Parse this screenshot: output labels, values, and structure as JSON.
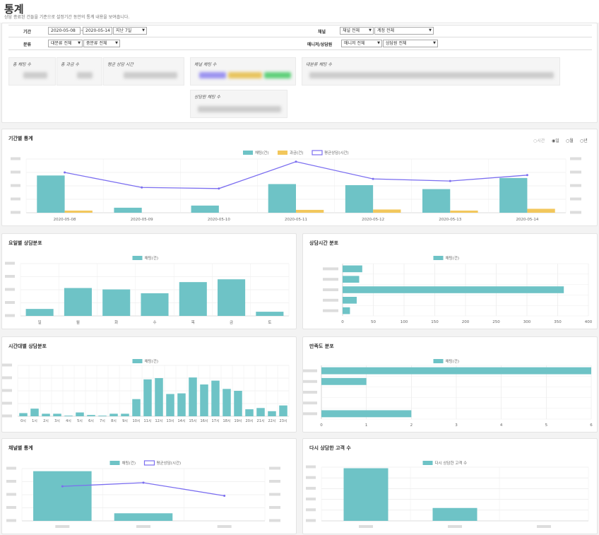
{
  "page": {
    "title": "통계",
    "subtitle": "상담 종료된 건들을 기준으로 설정기간 동안의 통계 내용을 보여줍니다."
  },
  "filters": {
    "period_label": "기간",
    "date_from": "2020-05-08",
    "date_sep": "~",
    "date_to": "2020-05-14",
    "range_select": "지난 7일",
    "channel_label": "채널",
    "channel_select": "채널 전체",
    "account_select": "계정 전체",
    "category_label": "분류",
    "major_select": "대분류 전체",
    "minor_select": "중분류 전체",
    "manager_label": "매니저/상담원",
    "manager_select": "매니저 전체",
    "agent_select": "상담원 전체"
  },
  "summary": {
    "total_chats_label": "총 채팅 수",
    "total_charge_label": "총 과금 수",
    "avg_time_label": "평균 상담 시간",
    "channel_chats_label": "채널 채팅 수",
    "major_chats_label": "대분류 채팅 수",
    "agent_chats_label": "상담원 채팅 수"
  },
  "period_chart": {
    "title": "기간별 통계",
    "radios": [
      "시간",
      "일",
      "월",
      "년"
    ],
    "selected": "일",
    "legend": [
      "채팅(건)",
      "과금(건)",
      "평균상담(시간)"
    ],
    "chart_data": {
      "type": "bar",
      "categories": [
        "2020-05-08",
        "2020-05-09",
        "2020-05-10",
        "2020-05-11",
        "2020-05-12",
        "2020-05-13",
        "2020-05-14"
      ],
      "series": [
        {
          "name": "채팅(건)",
          "values": [
            104,
            14,
            20,
            80,
            77,
            66,
            97
          ]
        },
        {
          "name": "과금(건)",
          "values": [
            6,
            0,
            0,
            8,
            9,
            6,
            11
          ]
        },
        {
          "name": "평균상담(시간)",
          "values": [
            75,
            47,
            45,
            95,
            63,
            59,
            70
          ]
        }
      ],
      "ylim": [
        0,
        150
      ]
    }
  },
  "dow_chart": {
    "title": "요일별 상담분포",
    "legend": [
      "채팅(건)"
    ],
    "chart_data": {
      "type": "bar",
      "categories": [
        "일",
        "월",
        "화",
        "수",
        "목",
        "금",
        "토"
      ],
      "values": [
        20,
        80,
        76,
        65,
        97,
        105,
        12
      ],
      "ylim": [
        0,
        150
      ]
    }
  },
  "duration_chart": {
    "title": "상담시간 분포",
    "legend": [
      "채팅(건)"
    ],
    "chart_data": {
      "type": "bar",
      "categories": [
        "",
        "",
        "",
        "",
        ""
      ],
      "values": [
        32,
        27,
        360,
        23,
        12
      ],
      "ticks": [
        "0",
        "50",
        "100",
        "150",
        "200",
        "250",
        "300",
        "350",
        "400"
      ],
      "xlim": [
        0,
        400
      ]
    }
  },
  "hour_chart": {
    "title": "시간대별 상담분포",
    "legend": [
      "채팅(건)"
    ],
    "chart_data": {
      "type": "bar",
      "categories": [
        "0시",
        "1시",
        "2시",
        "3시",
        "4시",
        "5시",
        "6시",
        "7시",
        "8시",
        "9시",
        "10시",
        "11시",
        "12시",
        "13시",
        "14시",
        "15시",
        "16시",
        "17시",
        "18시",
        "19시",
        "20시",
        "21시",
        "22시",
        "23시"
      ],
      "values": [
        5,
        12,
        4,
        4,
        1,
        6,
        2,
        1,
        4,
        4,
        27,
        58,
        60,
        35,
        36,
        61,
        50,
        56,
        43,
        40,
        11,
        13,
        8,
        17
      ],
      "ylim": [
        0,
        80
      ]
    }
  },
  "satisfaction_chart": {
    "title": "만족도 분포",
    "legend": [
      "채팅(건)"
    ],
    "chart_data": {
      "type": "bar",
      "categories": [
        "",
        "",
        "",
        "",
        ""
      ],
      "values": [
        6,
        1,
        0,
        0,
        2
      ],
      "ticks": [
        "0",
        "1",
        "2",
        "3",
        "4",
        "5",
        "6"
      ],
      "xlim": [
        0,
        6
      ]
    }
  },
  "channel_chart": {
    "title": "채널별 통계",
    "legend": [
      "채팅(건)",
      "평균상담(시간)"
    ],
    "chart_data": {
      "type": "bar",
      "categories": [
        "",
        "",
        ""
      ],
      "series": [
        {
          "name": "채팅(건)",
          "values": [
            380,
            58,
            0
          ]
        },
        {
          "name": "평균상담(시간)",
          "values": [
            66,
            73,
            48
          ]
        }
      ],
      "ylim": [
        0,
        400
      ]
    }
  },
  "return_chart": {
    "title": "다시 상담한 고객 수",
    "legend": [
      "다시 상담한 고객 수"
    ],
    "chart_data": {
      "type": "bar",
      "categories": [
        "",
        "",
        ""
      ],
      "values": [
        98,
        24,
        0
      ],
      "ylim": [
        0,
        100
      ]
    }
  },
  "colors": {
    "teal": "#6ec3c6",
    "yellow": "#f2c75c",
    "purple": "#7b6ef0"
  }
}
